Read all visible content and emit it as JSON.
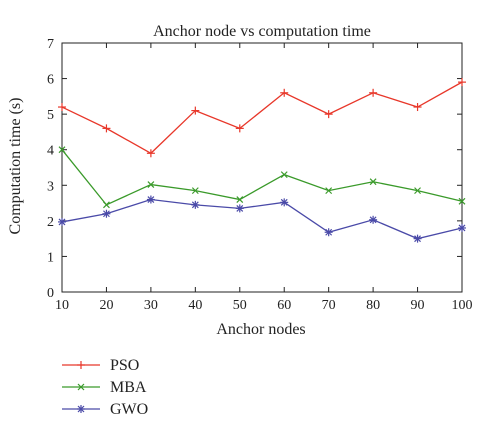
{
  "chart_data": {
    "type": "line",
    "title": "Anchor node vs computation time",
    "xlabel": "Anchor nodes",
    "ylabel": "Computation time (s)",
    "x": [
      10,
      20,
      30,
      40,
      50,
      60,
      70,
      80,
      90,
      100
    ],
    "xlim": [
      10,
      100
    ],
    "ylim": [
      0,
      7
    ],
    "xticks": [
      "10",
      "20",
      "30",
      "40",
      "50",
      "60",
      "70",
      "80",
      "90",
      "100"
    ],
    "yticks": [
      "0",
      "1",
      "2",
      "3",
      "4",
      "5",
      "6",
      "7"
    ],
    "grid": false,
    "legend_position": "bottom-left",
    "series": [
      {
        "name": "PSO",
        "color": "#e8372a",
        "marker": "plus",
        "values": [
          5.2,
          4.6,
          3.9,
          5.1,
          4.6,
          5.6,
          5.0,
          5.6,
          5.2,
          5.9
        ]
      },
      {
        "name": "MBA",
        "color": "#3a9a2a",
        "marker": "x",
        "values": [
          4.0,
          2.45,
          3.02,
          2.85,
          2.6,
          3.3,
          2.85,
          3.1,
          2.85,
          2.55
        ]
      },
      {
        "name": "GWO",
        "color": "#4a4aa8",
        "marker": "star",
        "values": [
          1.97,
          2.2,
          2.6,
          2.45,
          2.35,
          2.52,
          1.68,
          2.03,
          1.5,
          1.8
        ]
      }
    ]
  }
}
